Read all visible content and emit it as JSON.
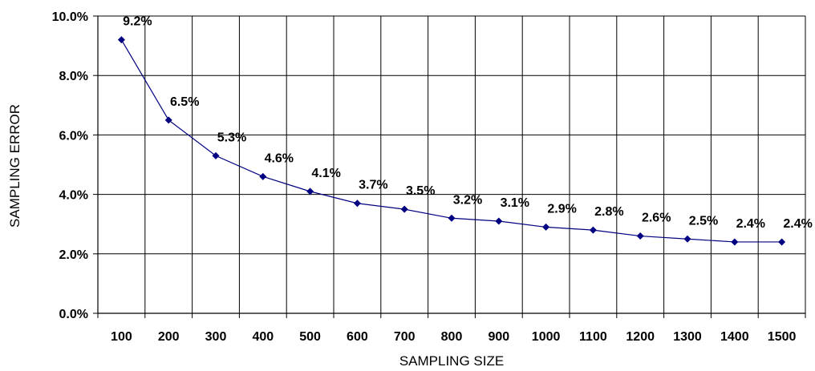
{
  "chart_data": {
    "type": "line",
    "title": "",
    "xlabel": "SAMPLING SIZE",
    "ylabel": "SAMPLING ERROR",
    "x": [
      100,
      200,
      300,
      400,
      500,
      600,
      700,
      800,
      900,
      1000,
      1100,
      1200,
      1300,
      1400,
      1500
    ],
    "series": [
      {
        "values": [
          9.2,
          6.5,
          5.3,
          4.6,
          4.1,
          3.7,
          3.5,
          3.2,
          3.1,
          2.9,
          2.8,
          2.6,
          2.5,
          2.4,
          2.4
        ],
        "labels": [
          "9.2%",
          "6.5%",
          "5.3%",
          "4.6%",
          "4.1%",
          "3.7%",
          "3.5%",
          "3.2%",
          "3.1%",
          "2.9%",
          "2.8%",
          "2.6%",
          "2.5%",
          "2.4%",
          "2.4%"
        ]
      }
    ],
    "ylim": [
      0,
      10
    ],
    "y_ticks": [
      0,
      2,
      4,
      6,
      8,
      10
    ],
    "y_tick_labels": [
      "0.0%",
      "2.0%",
      "4.0%",
      "6.0%",
      "8.0%",
      "10.0%"
    ],
    "x_tick_labels": [
      "100",
      "200",
      "300",
      "400",
      "500",
      "600",
      "700",
      "800",
      "900",
      "1000",
      "1100",
      "1200",
      "1300",
      "1400",
      "1500"
    ],
    "grid": true,
    "legend": "none",
    "colors": {
      "line": "#000080",
      "marker": "#000080",
      "grid": "#000000",
      "axis": "#000000"
    }
  }
}
